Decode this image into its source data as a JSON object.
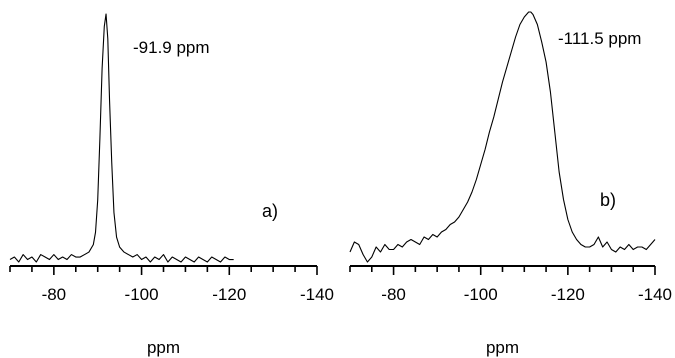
{
  "chart_data": [
    {
      "type": "line",
      "panel_label": "a)",
      "annotation": "-91.9 ppm",
      "xlabel": "ppm",
      "xlim": [
        -70,
        -140
      ],
      "xticks": [
        -80,
        -100,
        -120,
        -140
      ],
      "minor_step": 5,
      "ylim": [
        0,
        1
      ],
      "series": [
        {
          "x": [
            -70,
            -71,
            -72,
            -73,
            -74,
            -75,
            -76,
            -77,
            -78,
            -79,
            -80,
            -81,
            -82,
            -83,
            -84,
            -85,
            -86,
            -87,
            -88,
            -89,
            -89.5,
            -90,
            -90.5,
            -91,
            -91.5,
            -91.9,
            -92.3,
            -92.7,
            -93.2,
            -93.7,
            -94.3,
            -95,
            -96,
            -97,
            -98,
            -99,
            -100,
            -101,
            -102,
            -103,
            -104,
            -105,
            -106,
            -107,
            -108,
            -109,
            -110,
            -111,
            -112,
            -113,
            -114,
            -115,
            -116,
            -117,
            -118,
            -119,
            -120,
            -121
          ],
          "y": [
            0.01,
            0.02,
            0.0,
            0.03,
            0.01,
            0.02,
            0.0,
            0.03,
            0.02,
            0.01,
            0.03,
            0.01,
            0.02,
            0.01,
            0.03,
            0.02,
            0.02,
            0.03,
            0.04,
            0.07,
            0.12,
            0.25,
            0.5,
            0.78,
            0.95,
            1.0,
            0.9,
            0.65,
            0.4,
            0.2,
            0.1,
            0.06,
            0.04,
            0.03,
            0.02,
            0.03,
            0.01,
            0.02,
            0.0,
            0.02,
            0.01,
            0.03,
            0.0,
            0.02,
            0.01,
            0.0,
            0.02,
            0.01,
            0.0,
            0.02,
            0.01,
            0.0,
            0.02,
            0.01,
            0.0,
            0.02,
            0.01,
            0.01
          ]
        }
      ]
    },
    {
      "type": "line",
      "panel_label": "b)",
      "annotation": "-111.5 ppm",
      "xlabel": "ppm",
      "xlim": [
        -70,
        -140
      ],
      "xticks": [
        -80,
        -100,
        -120,
        -140
      ],
      "minor_step": 5,
      "ylim": [
        0,
        1
      ],
      "series": [
        {
          "x": [
            -70,
            -71,
            -72,
            -73,
            -74,
            -75,
            -76,
            -77,
            -78,
            -79,
            -80,
            -81,
            -82,
            -83,
            -84,
            -85,
            -86,
            -87,
            -88,
            -89,
            -90,
            -91,
            -92,
            -93,
            -94,
            -95,
            -96,
            -97,
            -98,
            -99,
            -100,
            -101,
            -102,
            -103,
            -104,
            -105,
            -106,
            -107,
            -108,
            -109,
            -110,
            -111,
            -111.5,
            -112,
            -113,
            -114,
            -115,
            -116,
            -117,
            -118,
            -119,
            -120,
            -121,
            -122,
            -123,
            -124,
            -125,
            -126,
            -127,
            -128,
            -129,
            -130,
            -131,
            -132,
            -133,
            -134,
            -135,
            -136,
            -137,
            -138,
            -139,
            -140
          ],
          "y": [
            0.04,
            0.08,
            0.07,
            0.03,
            0.0,
            0.02,
            0.06,
            0.04,
            0.07,
            0.05,
            0.05,
            0.07,
            0.06,
            0.08,
            0.09,
            0.08,
            0.07,
            0.1,
            0.09,
            0.11,
            0.1,
            0.12,
            0.13,
            0.15,
            0.16,
            0.18,
            0.21,
            0.24,
            0.28,
            0.33,
            0.39,
            0.45,
            0.52,
            0.58,
            0.65,
            0.72,
            0.78,
            0.84,
            0.9,
            0.95,
            0.98,
            1.0,
            1.0,
            0.99,
            0.95,
            0.88,
            0.8,
            0.68,
            0.52,
            0.36,
            0.25,
            0.17,
            0.12,
            0.09,
            0.07,
            0.06,
            0.06,
            0.07,
            0.1,
            0.06,
            0.08,
            0.05,
            0.04,
            0.06,
            0.05,
            0.07,
            0.05,
            0.06,
            0.06,
            0.05,
            0.07,
            0.09
          ]
        }
      ]
    }
  ]
}
